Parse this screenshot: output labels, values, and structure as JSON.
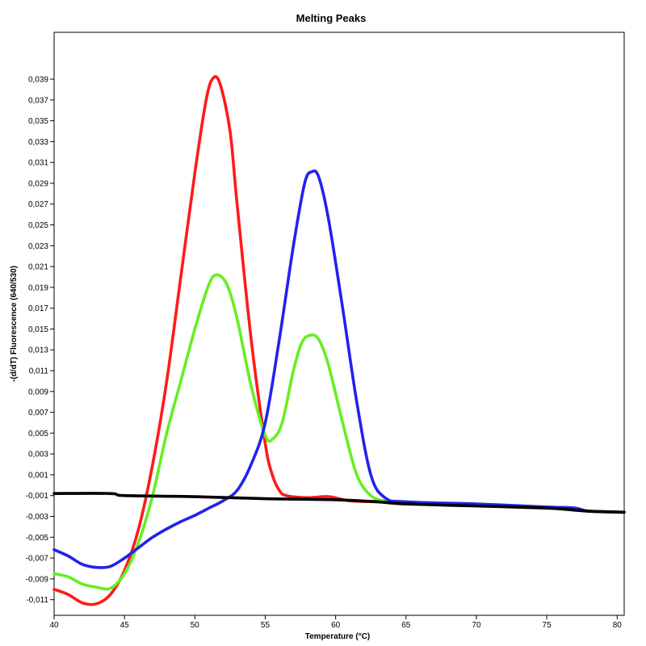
{
  "chart_data": {
    "type": "line",
    "title": "Melting Peaks",
    "xlabel": "Temperature (°C)",
    "ylabel": "-(d/dT) Fluorescence (640/530)",
    "xlim": [
      40,
      80.5
    ],
    "ylim": [
      -0.0125,
      0.0435
    ],
    "x_ticks": [
      40,
      45,
      50,
      55,
      60,
      65,
      70,
      75,
      80
    ],
    "x_tick_labels": [
      "40",
      "45",
      "50",
      "55",
      "60",
      "65",
      "70",
      "75",
      "80"
    ],
    "y_ticks": [
      -0.011,
      -0.009,
      -0.007,
      -0.005,
      -0.003,
      -0.001,
      0.001,
      0.003,
      0.005,
      0.007,
      0.009,
      0.011,
      0.013,
      0.015,
      0.017,
      0.019,
      0.021,
      0.023,
      0.025,
      0.027,
      0.029,
      0.031,
      0.033,
      0.035,
      0.037,
      0.039
    ],
    "y_tick_labels": [
      "-0,011",
      "-0,009",
      "-0,007",
      "-0,005",
      "-0,003",
      "-0,001",
      "0,001",
      "0,003",
      "0,005",
      "0,007",
      "0,009",
      "0,011",
      "0,013",
      "0,015",
      "0,017",
      "0,019",
      "0,021",
      "0,023",
      "0,025",
      "0,027",
      "0,029",
      "0,031",
      "0,033",
      "0,035",
      "0,037",
      "0,039"
    ],
    "grid": false,
    "legend": "none",
    "series": [
      {
        "color": "#ff1a1a",
        "points": [
          [
            40,
            -0.01
          ],
          [
            41,
            -0.0105
          ],
          [
            42,
            -0.0113
          ],
          [
            43,
            -0.0114
          ],
          [
            44,
            -0.0105
          ],
          [
            45,
            -0.0082
          ],
          [
            46,
            -0.0042
          ],
          [
            47,
            0.002
          ],
          [
            48,
            0.01
          ],
          [
            49,
            0.02
          ],
          [
            50,
            0.03
          ],
          [
            50.8,
            0.037
          ],
          [
            51.3,
            0.0391
          ],
          [
            51.8,
            0.0385
          ],
          [
            52.5,
            0.034
          ],
          [
            53,
            0.027
          ],
          [
            54,
            0.014
          ],
          [
            55,
            0.004
          ],
          [
            55.5,
            0.001
          ],
          [
            56,
            -0.0005
          ],
          [
            56.5,
            -0.001
          ],
          [
            58,
            -0.0012
          ],
          [
            59.5,
            -0.0011
          ],
          [
            61,
            -0.0015
          ],
          [
            63,
            -0.0016
          ],
          [
            65,
            -0.0018
          ],
          [
            70,
            -0.0019
          ],
          [
            75,
            -0.0021
          ],
          [
            77,
            -0.0022
          ],
          [
            78,
            -0.0025
          ],
          [
            80.5,
            -0.0026
          ]
        ]
      },
      {
        "color": "#66ee22",
        "points": [
          [
            40,
            -0.0085
          ],
          [
            41,
            -0.0088
          ],
          [
            42,
            -0.0095
          ],
          [
            43,
            -0.0098
          ],
          [
            44,
            -0.0099
          ],
          [
            45,
            -0.0085
          ],
          [
            46,
            -0.0055
          ],
          [
            47,
            -0.001
          ],
          [
            48,
            0.005
          ],
          [
            49,
            0.01
          ],
          [
            50,
            0.015
          ],
          [
            51,
            0.0193
          ],
          [
            51.6,
            0.0202
          ],
          [
            52.3,
            0.0192
          ],
          [
            53,
            0.016
          ],
          [
            54,
            0.0095
          ],
          [
            55,
            0.0048
          ],
          [
            55.5,
            0.0044
          ],
          [
            56.2,
            0.006
          ],
          [
            57,
            0.011
          ],
          [
            57.6,
            0.0137
          ],
          [
            58.2,
            0.0144
          ],
          [
            58.8,
            0.014
          ],
          [
            59.5,
            0.0115
          ],
          [
            60.5,
            0.006
          ],
          [
            61.5,
            0.001
          ],
          [
            62.5,
            -0.001
          ],
          [
            63.5,
            -0.0015
          ],
          [
            65,
            -0.0016
          ],
          [
            70,
            -0.0019
          ],
          [
            75,
            -0.0021
          ],
          [
            77,
            -0.0022
          ],
          [
            78,
            -0.0025
          ],
          [
            80.5,
            -0.0026
          ]
        ]
      },
      {
        "color": "#2222ee",
        "points": [
          [
            40,
            -0.0062
          ],
          [
            41,
            -0.0068
          ],
          [
            42,
            -0.0076
          ],
          [
            43,
            -0.0079
          ],
          [
            44,
            -0.0078
          ],
          [
            45,
            -0.007
          ],
          [
            46,
            -0.006
          ],
          [
            47,
            -0.005
          ],
          [
            48,
            -0.0042
          ],
          [
            49,
            -0.0035
          ],
          [
            50,
            -0.0029
          ],
          [
            51,
            -0.0022
          ],
          [
            52,
            -0.0015
          ],
          [
            53,
            -0.0005
          ],
          [
            54,
            0.002
          ],
          [
            55,
            0.006
          ],
          [
            56,
            0.014
          ],
          [
            57,
            0.023
          ],
          [
            57.8,
            0.029
          ],
          [
            58.3,
            0.0301
          ],
          [
            58.8,
            0.0296
          ],
          [
            59.5,
            0.0255
          ],
          [
            60.5,
            0.017
          ],
          [
            61.5,
            0.008
          ],
          [
            62.5,
            0.001
          ],
          [
            63.5,
            -0.0012
          ],
          [
            65,
            -0.0016
          ],
          [
            70,
            -0.0018
          ],
          [
            75,
            -0.0021
          ],
          [
            77,
            -0.0022
          ],
          [
            78,
            -0.0025
          ],
          [
            80.5,
            -0.0026
          ]
        ]
      },
      {
        "color": "#000000",
        "points": [
          [
            40,
            -0.0008
          ],
          [
            44,
            -0.0008
          ],
          [
            45,
            -0.001
          ],
          [
            50,
            -0.0011
          ],
          [
            55,
            -0.0013
          ],
          [
            60,
            -0.0014
          ],
          [
            63,
            -0.0016
          ],
          [
            65,
            -0.0018
          ],
          [
            70,
            -0.002
          ],
          [
            75,
            -0.0022
          ],
          [
            77,
            -0.0024
          ],
          [
            78,
            -0.0025
          ],
          [
            80.5,
            -0.0026
          ]
        ]
      }
    ]
  }
}
